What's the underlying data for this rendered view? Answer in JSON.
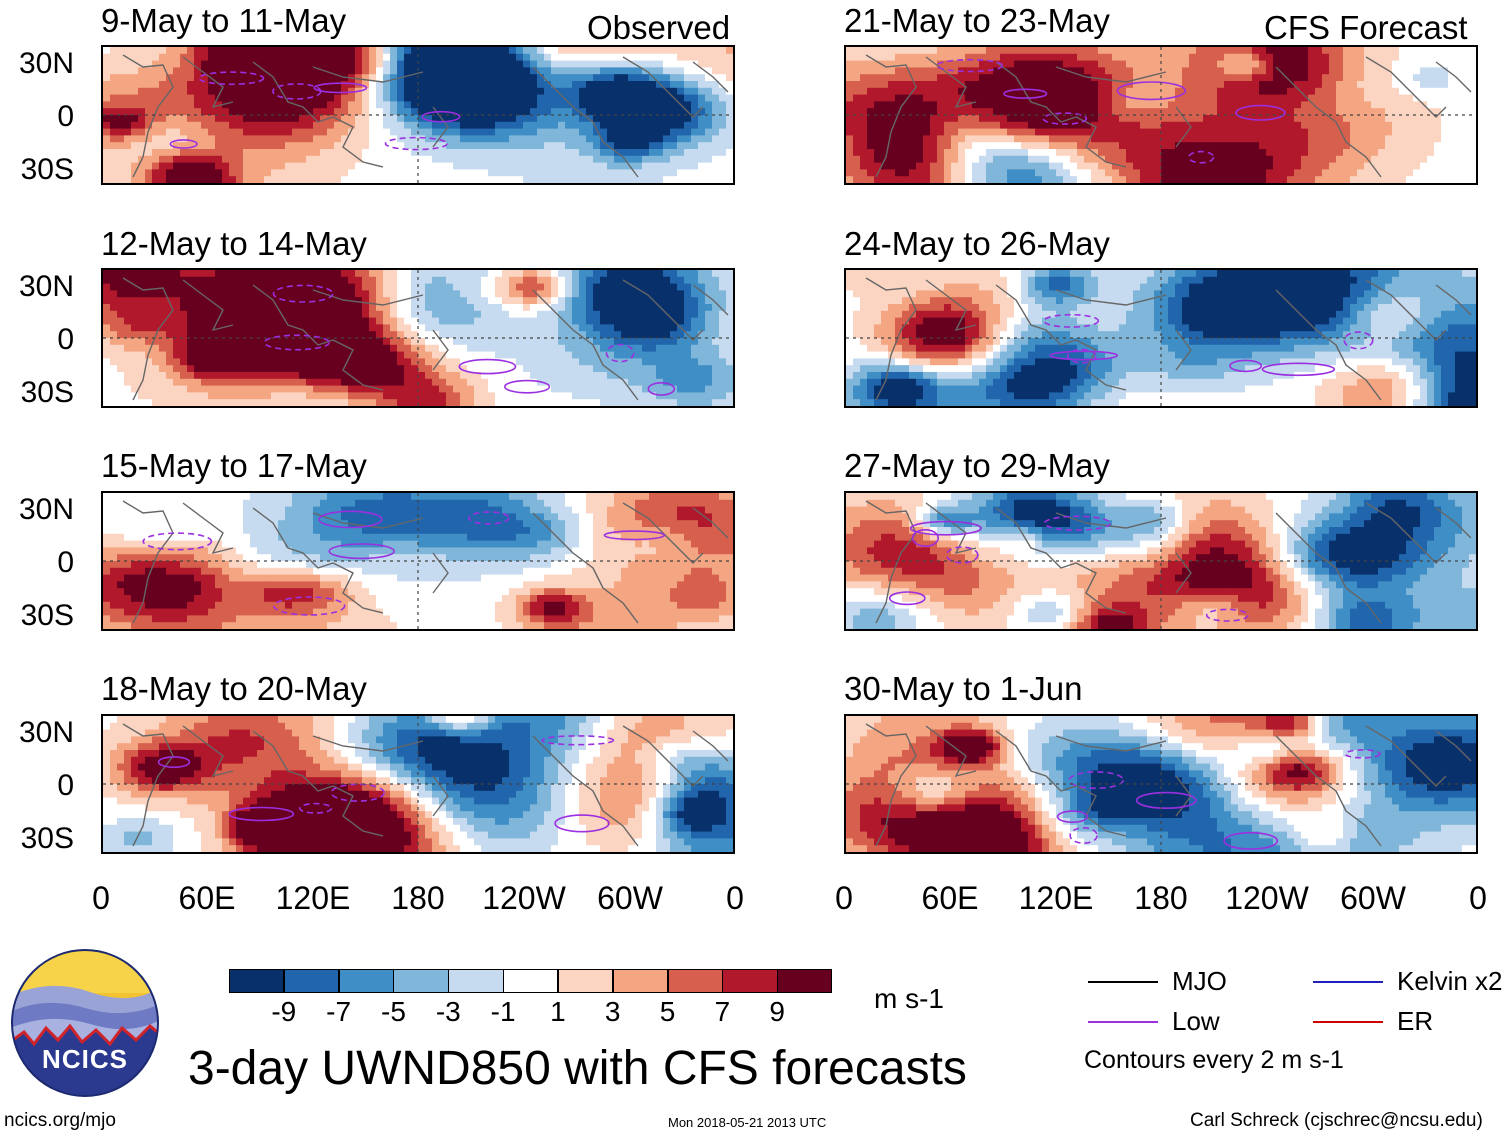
{
  "chart_data": {
    "type": "heatmap",
    "title": "3-day UWND850 with CFS forecasts",
    "variable": "UWND850",
    "units": "m s-1",
    "column_headers": [
      "Observed",
      "CFS Forecast"
    ],
    "x_ticks": [
      "0",
      "60E",
      "120E",
      "180",
      "120W",
      "60W",
      "0"
    ],
    "y_ticks": [
      "30N",
      "0",
      "30S"
    ],
    "colorbar": {
      "ticks": [
        "-9",
        "-7",
        "-5",
        "-3",
        "-1",
        "1",
        "3",
        "5",
        "7",
        "9"
      ],
      "colors": [
        "#08306b",
        "#2166ac",
        "#3f8ec5",
        "#7fb6d9",
        "#c6dbef",
        "#ffffff",
        "#fcd5c2",
        "#f4a582",
        "#d6604d",
        "#b2182b",
        "#67001f"
      ]
    },
    "panels": [
      {
        "column": "Observed",
        "period": "9-May to 11-May"
      },
      {
        "column": "Observed",
        "period": "12-May to 14-May"
      },
      {
        "column": "Observed",
        "period": "15-May to 17-May"
      },
      {
        "column": "Observed",
        "period": "18-May to 20-May"
      },
      {
        "column": "CFS Forecast",
        "period": "21-May to 23-May"
      },
      {
        "column": "CFS Forecast",
        "period": "24-May to 26-May"
      },
      {
        "column": "CFS Forecast",
        "period": "27-May to 29-May"
      },
      {
        "column": "CFS Forecast",
        "period": "30-May to 1-Jun"
      }
    ],
    "legend": {
      "items": [
        {
          "label": "MJO",
          "color": "#000000"
        },
        {
          "label": "Kelvin x2",
          "color": "#1f1fbf"
        },
        {
          "label": "Low",
          "color": "#9b30e0"
        },
        {
          "label": "ER",
          "color": "#cc0000"
        }
      ],
      "note": "Contours every 2 m s-1"
    }
  },
  "footer": {
    "logo_text": "NCICS",
    "site": "ncics.org/mjo",
    "timestamp": "Mon 2018-05-21 2013 UTC",
    "author": "Carl Schreck (cjschrec@ncsu.edu)"
  }
}
